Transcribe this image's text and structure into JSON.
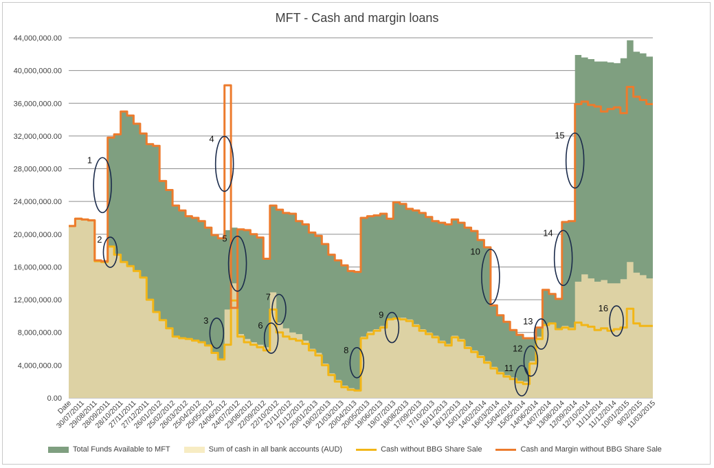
{
  "chart_data": {
    "type": "area",
    "title": "MFT - Cash and margin loans",
    "xlabel": "",
    "ylabel": "",
    "ylim": [
      0,
      44000000
    ],
    "grid": true,
    "legend_position": "bottom",
    "y_ticks": [
      "0.00",
      "4,000,000.00",
      "8,000,000.00",
      "12,000,000.00",
      "16,000,000.00",
      "20,000,000.00",
      "24,000,000.00",
      "28,000,000.00",
      "32,000,000.00",
      "36,000,000.00",
      "40,000,000.00",
      "44,000,000.00"
    ],
    "x_ticks": [
      "Date",
      "30/07/2011",
      "29/08/2011",
      "28/09/2011",
      "28/10/2011",
      "27/11/2011",
      "27/12/2011",
      "26/01/2012",
      "25/02/2012",
      "26/03/2012",
      "25/04/2012",
      "25/05/2012",
      "24/06/2012",
      "24/07/2012",
      "23/08/2012",
      "22/09/2012",
      "22/10/2012",
      "21/11/2012",
      "21/12/2012",
      "20/01/2013",
      "19/02/2013",
      "21/03/2013",
      "20/04/2013",
      "20/05/2013",
      "19/06/2013",
      "19/07/2013",
      "18/08/2013",
      "17/09/2013",
      "17/10/2013",
      "16/11/2013",
      "16/12/2013",
      "15/01/2014",
      "14/02/2014",
      "16/03/2014",
      "15/04/2014",
      "15/05/2014",
      "14/06/2014",
      "14/07/2014",
      "13/08/2014",
      "12/09/2014",
      "12/10/2014",
      "11/11/2014",
      "11/12/2014",
      "10/01/2015",
      "9/02/2015",
      "11/03/2015"
    ],
    "x": [
      0,
      0.5,
      1,
      1.5,
      2,
      2.5,
      3,
      3.5,
      4,
      4.5,
      5,
      5.5,
      6,
      6.5,
      7,
      7.5,
      8,
      8.5,
      9,
      9.5,
      10,
      10.5,
      11,
      11.5,
      12,
      12.5,
      13,
      13.5,
      14,
      14.5,
      15,
      15.5,
      16,
      16.5,
      17,
      17.5,
      18,
      18.5,
      19,
      19.5,
      20,
      20.5,
      21,
      21.5,
      22,
      22.5,
      23,
      23.5,
      24,
      24.5,
      25,
      25.5,
      26,
      26.5,
      27,
      27.5,
      28,
      28.5,
      29,
      29.5,
      30,
      30.5,
      31,
      31.5,
      32,
      32.5,
      33,
      33.5,
      34,
      34.5,
      35,
      35.5,
      36,
      36.5,
      37,
      37.5,
      38,
      38.5,
      39,
      39.5,
      40,
      40.5,
      41,
      41.5,
      42,
      42.5,
      43,
      43.5,
      44,
      44.5
    ],
    "series": [
      {
        "name": "Total Funds Available to MFT",
        "color": "#7f9f80",
        "kind": "area",
        "values": [
          21000000,
          21900000,
          21800000,
          21700000,
          16800000,
          16700000,
          31800000,
          32200000,
          35000000,
          34500000,
          33500000,
          32300000,
          31000000,
          30800000,
          26500000,
          25400000,
          23500000,
          22900000,
          22200000,
          22000000,
          21600000,
          20800000,
          19900000,
          19500000,
          20500000,
          20800000,
          20600000,
          20500000,
          20000000,
          19600000,
          17000000,
          23500000,
          23000000,
          22600000,
          22500000,
          21600000,
          21200000,
          20200000,
          19800000,
          18800000,
          17500000,
          16800000,
          16200000,
          15500000,
          15400000,
          22000000,
          22200000,
          22300000,
          22500000,
          21900000,
          23900000,
          23700000,
          23100000,
          22900000,
          22600000,
          22100000,
          21600000,
          21400000,
          21200000,
          21800000,
          21400000,
          20800000,
          20400000,
          19300000,
          18400000,
          11300000,
          10100000,
          9300000,
          8300000,
          7700000,
          7300000,
          7300000,
          8600000,
          13200000,
          12700000,
          12100000,
          21500000,
          21600000,
          41900000,
          41600000,
          41400000,
          41100000,
          41100000,
          41000000,
          40900000,
          41500000,
          43700000,
          42300000,
          42100000,
          41700000
        ]
      },
      {
        "name": "Sum of cash in all bank accounts (AUD)",
        "color": "#ddd2a4",
        "kind": "area",
        "values": [
          21000000,
          21900000,
          21800000,
          21700000,
          16700000,
          16600000,
          18500000,
          17500000,
          16600000,
          16100000,
          15500000,
          14700000,
          12000000,
          10500000,
          9500000,
          8500000,
          7500000,
          7300000,
          7200000,
          7000000,
          6800000,
          6400000,
          5500000,
          4700000,
          10800000,
          14000000,
          7800000,
          7200000,
          6800000,
          6500000,
          6200000,
          12900000,
          9200000,
          8500000,
          8000000,
          7800000,
          7000000,
          6000000,
          5500000,
          4200000,
          3000000,
          2200000,
          1500000,
          1200000,
          1000000,
          7500000,
          8100000,
          8400000,
          8800000,
          9700000,
          9800000,
          9800000,
          9600000,
          9000000,
          8400000,
          8000000,
          7600000,
          7000000,
          6600000,
          7600000,
          7200000,
          6300000,
          5800000,
          5200000,
          4500000,
          3800000,
          3200000,
          2800000,
          2500000,
          2100000,
          2000000,
          4500000,
          7500000,
          9000000,
          9200000,
          8500000,
          8800000,
          8600000,
          14200000,
          15100000,
          14600000,
          14200000,
          14400000,
          14000000,
          14000000,
          14500000,
          16600000,
          15300000,
          15000000,
          14600000
        ]
      },
      {
        "name": "Cash without BBG Share Sale",
        "color": "#f2b617",
        "kind": "line",
        "values": [
          21000000,
          21900000,
          21800000,
          21700000,
          16700000,
          16600000,
          18500000,
          17500000,
          16600000,
          16100000,
          15500000,
          14700000,
          12000000,
          10500000,
          9500000,
          8500000,
          7500000,
          7300000,
          7200000,
          7000000,
          6800000,
          6400000,
          5500000,
          4700000,
          6500000,
          11900000,
          7500000,
          6800000,
          6500000,
          6200000,
          5800000,
          10800000,
          8000000,
          7500000,
          7200000,
          7000000,
          6600000,
          5800000,
          5200000,
          4000000,
          2800000,
          2000000,
          1300000,
          1000000,
          900000,
          7300000,
          7800000,
          8200000,
          8600000,
          9600000,
          9700000,
          9600000,
          9400000,
          8800000,
          8200000,
          7800000,
          7400000,
          6800000,
          6400000,
          7400000,
          7000000,
          6100000,
          5600000,
          5000000,
          4300000,
          3600000,
          3000000,
          2600000,
          2300000,
          1900000,
          1700000,
          4200000,
          7200000,
          8900000,
          9100000,
          8400000,
          8600000,
          8400000,
          9200000,
          8900000,
          8700000,
          8300000,
          8500000,
          8200000,
          8400000,
          8600000,
          10900000,
          9100000,
          8800000,
          8800000
        ]
      },
      {
        "name": "Cash and Margin without BBG Share Sale",
        "color": "#ec7b2d",
        "kind": "line",
        "values": [
          21000000,
          21900000,
          21800000,
          21700000,
          16800000,
          16700000,
          31800000,
          32200000,
          35000000,
          34500000,
          33500000,
          32300000,
          31000000,
          30800000,
          26500000,
          25400000,
          23500000,
          22900000,
          22200000,
          22000000,
          21600000,
          20800000,
          19900000,
          19500000,
          38200000,
          11000000,
          20600000,
          20500000,
          20000000,
          19600000,
          17000000,
          23500000,
          23000000,
          22600000,
          22500000,
          21600000,
          21200000,
          20200000,
          19800000,
          18800000,
          17500000,
          16800000,
          16200000,
          15500000,
          15400000,
          22000000,
          22200000,
          22300000,
          22500000,
          21900000,
          23900000,
          23700000,
          23100000,
          22900000,
          22600000,
          22100000,
          21600000,
          21400000,
          21200000,
          21800000,
          21400000,
          20800000,
          20400000,
          19300000,
          18400000,
          11300000,
          10100000,
          9300000,
          8300000,
          7700000,
          7300000,
          7300000,
          8600000,
          13200000,
          12700000,
          12100000,
          21500000,
          21600000,
          35900000,
          36200000,
          35800000,
          35600000,
          35000000,
          35300000,
          35500000,
          34800000,
          38000000,
          36800000,
          36400000,
          35900000
        ]
      }
    ],
    "annotations": [
      {
        "label": "1",
        "x": 2.6,
        "y": 26000000
      },
      {
        "label": "2",
        "x": 3.2,
        "y": 17800000
      },
      {
        "label": "3",
        "x": 11.4,
        "y": 7900000
      },
      {
        "label": "4",
        "x": 12.0,
        "y": 28600000
      },
      {
        "label": "5",
        "x": 13.0,
        "y": 16400000
      },
      {
        "label": "6",
        "x": 15.6,
        "y": 7300000
      },
      {
        "label": "7",
        "x": 16.2,
        "y": 10800000
      },
      {
        "label": "8",
        "x": 22.2,
        "y": 4300000
      },
      {
        "label": "9",
        "x": 24.9,
        "y": 8600000
      },
      {
        "label": "10",
        "x": 32.5,
        "y": 14800000
      },
      {
        "label": "11",
        "x": 34.9,
        "y": 2100000
      },
      {
        "label": "12",
        "x": 35.6,
        "y": 4500000
      },
      {
        "label": "13",
        "x": 36.4,
        "y": 7800000
      },
      {
        "label": "14",
        "x": 38.1,
        "y": 17100000
      },
      {
        "label": "15",
        "x": 39.0,
        "y": 29000000
      },
      {
        "label": "16",
        "x": 42.2,
        "y": 9400000
      }
    ]
  },
  "legend": {
    "items": [
      {
        "label": "Total Funds Available to MFT",
        "color": "#7f9f80",
        "kind": "box"
      },
      {
        "label": "Sum of cash in all bank accounts (AUD)",
        "color": "#f7ecc3",
        "kind": "box"
      },
      {
        "label": "Cash without BBG Share Sale",
        "color": "#f2b617",
        "kind": "line"
      },
      {
        "label": "Cash and Margin without BBG Share Sale",
        "color": "#ec7b2d",
        "kind": "line"
      }
    ]
  }
}
